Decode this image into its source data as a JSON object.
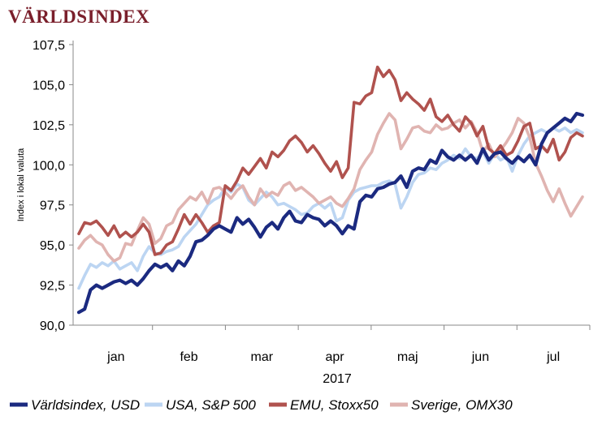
{
  "chart_data": {
    "type": "line",
    "title": "VÄRLDSINDEX",
    "ylabel": "Index i lokal valuta",
    "xlabel": "2017",
    "ylim": [
      90,
      107.5
    ],
    "yticks": [
      "90,0",
      "92,5",
      "95,0",
      "97,5",
      "100,0",
      "102,5",
      "105,0",
      "107,5"
    ],
    "ytick_values": [
      90,
      92.5,
      95,
      97.5,
      100,
      102.5,
      105,
      107.5
    ],
    "months": [
      "jan",
      "feb",
      "mar",
      "apr",
      "maj",
      "jun",
      "jul"
    ],
    "x_unit": "trading weeks 2017",
    "grid": false,
    "legend_position": "bottom",
    "series": [
      {
        "name": "Världsindex, USD",
        "color": "#1b2a80",
        "values": [
          90.8,
          91.0,
          92.2,
          92.5,
          92.3,
          92.5,
          92.7,
          92.8,
          92.6,
          92.8,
          92.5,
          92.9,
          93.4,
          93.8,
          93.6,
          93.8,
          93.4,
          94.0,
          93.7,
          94.3,
          95.2,
          95.3,
          95.6,
          96.0,
          96.2,
          96.0,
          95.8,
          96.7,
          96.3,
          96.6,
          96.1,
          95.5,
          96.1,
          96.4,
          96.0,
          96.7,
          97.1,
          96.5,
          96.4,
          96.9,
          96.7,
          96.6,
          96.2,
          96.5,
          96.2,
          95.7,
          96.2,
          96.0,
          97.7,
          98.1,
          98.0,
          98.5,
          98.6,
          98.8,
          98.9,
          99.3,
          98.6,
          99.6,
          99.8,
          99.7,
          100.3,
          100.1,
          100.9,
          100.5,
          100.3,
          100.6,
          100.3,
          100.6,
          100.1,
          101.0,
          100.3,
          100.7,
          100.8,
          100.4,
          100.1,
          100.5,
          100.2,
          100.6,
          100.0,
          101.3,
          102.0,
          102.3,
          102.6,
          102.9,
          102.7,
          103.2,
          103.1
        ]
      },
      {
        "name": "USA, S&P 500",
        "color": "#bcd5f2",
        "values": [
          92.3,
          93.1,
          93.8,
          93.6,
          93.9,
          93.7,
          94.0,
          93.5,
          93.7,
          93.9,
          93.4,
          94.3,
          94.9,
          94.5,
          94.4,
          94.6,
          94.7,
          94.9,
          95.5,
          95.9,
          96.3,
          96.9,
          97.5,
          97.8,
          98.0,
          98.6,
          98.3,
          98.8,
          98.6,
          97.8,
          97.5,
          97.9,
          98.3,
          98.0,
          97.5,
          97.6,
          97.4,
          97.2,
          96.9,
          97.0,
          97.4,
          97.6,
          97.3,
          97.6,
          96.5,
          96.7,
          97.8,
          98.3,
          98.5,
          98.6,
          98.7,
          98.7,
          98.9,
          99.0,
          98.8,
          97.3,
          98.0,
          98.9,
          99.4,
          99.5,
          99.8,
          99.7,
          100.1,
          100.3,
          100.6,
          100.4,
          101.0,
          100.5,
          100.4,
          100.8,
          100.1,
          100.7,
          100.3,
          100.5,
          99.6,
          100.6,
          101.3,
          101.8,
          102.0,
          102.2,
          102.0,
          102.3,
          102.1,
          102.3,
          102.0,
          102.2,
          102.0
        ]
      },
      {
        "name": "EMU, Stoxx50",
        "color": "#b0524e",
        "values": [
          95.7,
          96.4,
          96.3,
          96.5,
          96.1,
          95.6,
          96.2,
          95.5,
          95.8,
          95.5,
          95.8,
          96.3,
          95.8,
          94.4,
          94.5,
          95.0,
          95.2,
          96.0,
          96.9,
          96.3,
          96.9,
          96.4,
          95.8,
          96.2,
          96.4,
          98.7,
          98.4,
          99.0,
          99.8,
          99.4,
          99.9,
          100.4,
          99.8,
          100.8,
          100.5,
          100.9,
          101.5,
          101.8,
          101.4,
          100.8,
          101.2,
          100.7,
          100.1,
          99.6,
          100.2,
          99.2,
          99.8,
          103.9,
          103.8,
          104.3,
          104.5,
          106.1,
          105.5,
          105.9,
          105.3,
          104.0,
          104.5,
          104.1,
          103.8,
          103.4,
          104.1,
          103.0,
          102.7,
          103.1,
          102.5,
          102.1,
          103.0,
          102.6,
          101.8,
          102.4,
          101.0,
          100.7,
          101.2,
          100.6,
          100.8,
          101.5,
          102.4,
          102.6,
          101.0,
          101.2,
          100.8,
          101.6,
          100.3,
          100.8,
          101.7,
          102.0,
          101.8
        ]
      },
      {
        "name": "Sverige, OMX30",
        "color": "#e0b4b1",
        "values": [
          94.8,
          95.3,
          95.6,
          95.2,
          95.0,
          94.4,
          94.0,
          94.2,
          95.1,
          95.0,
          95.9,
          96.7,
          96.3,
          95.1,
          95.4,
          96.2,
          96.4,
          97.2,
          97.6,
          98.0,
          97.8,
          98.3,
          97.6,
          98.5,
          98.6,
          98.3,
          97.9,
          98.4,
          98.7,
          98.0,
          97.5,
          98.5,
          98.0,
          98.3,
          98.1,
          98.7,
          98.9,
          98.4,
          98.6,
          98.3,
          98.0,
          97.6,
          97.8,
          98.0,
          97.6,
          97.4,
          97.9,
          98.5,
          99.7,
          100.3,
          100.8,
          101.9,
          102.6,
          103.2,
          102.8,
          101.0,
          101.6,
          102.3,
          102.4,
          102.1,
          102.0,
          102.5,
          102.2,
          102.3,
          102.6,
          102.8,
          102.3,
          102.7,
          102.0,
          100.8,
          101.3,
          100.5,
          100.9,
          101.4,
          102.0,
          102.9,
          102.6,
          101.7,
          100.1,
          99.3,
          98.4,
          97.7,
          98.5,
          97.6,
          96.8,
          97.4,
          98.0
        ]
      }
    ]
  }
}
